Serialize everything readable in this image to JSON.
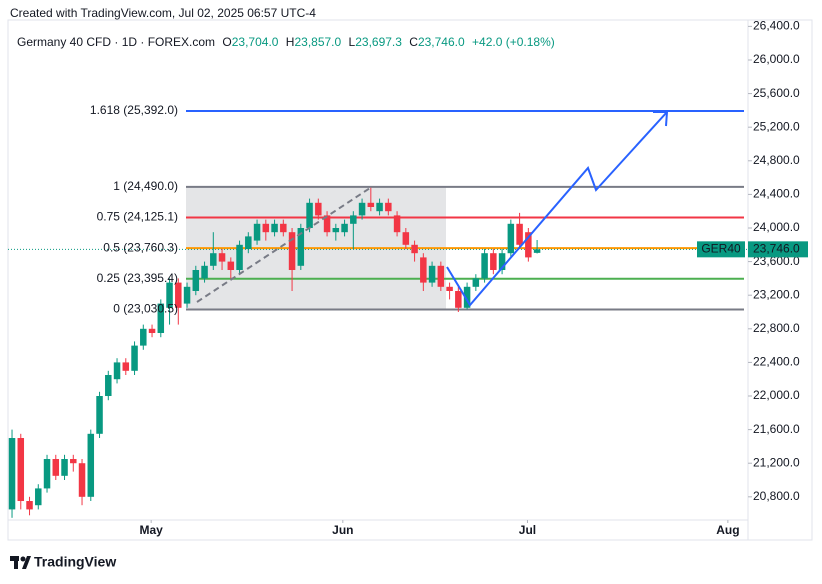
{
  "header": {
    "created": "Created with TradingView.com, Jul 02, 2025 06:57 UTC-4",
    "symbol": "Germany 40 CFD · 1D · FOREX.com",
    "ohlc": [
      {
        "key": "O",
        "value": "23,704.0"
      },
      {
        "key": "H",
        "value": "23,857.0"
      },
      {
        "key": "L",
        "value": "23,697.3"
      },
      {
        "key": "C",
        "value": "23,746.0"
      }
    ],
    "change": "+42.0 (+0.18%)"
  },
  "footer": {
    "brand": "TradingView"
  },
  "chart_data": {
    "type": "candlestick",
    "up_color": "#089981",
    "down_color": "#f23645",
    "open": [
      20650,
      21500,
      20750,
      20700,
      20900,
      21250,
      21050,
      21250,
      21200,
      20800,
      21550,
      22000,
      22200,
      22400,
      22300,
      22600,
      22800,
      22750,
      23050,
      23350,
      23100,
      23250,
      23400,
      23550,
      23700,
      23600,
      23500,
      23750,
      23850,
      24050,
      23950,
      24050,
      23950,
      23550,
      24000,
      24300,
      24150,
      23950,
      23950,
      24050,
      24150,
      24300,
      24200,
      24300,
      24150,
      23950,
      23800,
      23650,
      23350,
      23550,
      23300,
      23250,
      23050,
      23300,
      23400,
      23700,
      23500,
      23700,
      24050,
      23950,
      23704
    ],
    "high": [
      21600,
      21550,
      20800,
      20950,
      21300,
      21300,
      21300,
      21300,
      21250,
      21600,
      22050,
      22300,
      22450,
      22450,
      22650,
      22850,
      22850,
      23150,
      23400,
      23400,
      23350,
      23550,
      23600,
      23950,
      23750,
      23650,
      23850,
      23950,
      24100,
      24100,
      24100,
      24100,
      24000,
      24050,
      24350,
      24350,
      24200,
      24050,
      24100,
      24200,
      24350,
      24480,
      24350,
      24350,
      24200,
      24000,
      23850,
      23700,
      23600,
      23600,
      23350,
      23300,
      23350,
      23450,
      23750,
      23750,
      23750,
      24100,
      24180,
      24000,
      23857
    ],
    "low": [
      20550,
      20650,
      20580,
      20650,
      20850,
      21000,
      21000,
      21100,
      20700,
      20750,
      21500,
      21950,
      22150,
      22250,
      22250,
      22550,
      22700,
      22700,
      22850,
      22850,
      23050,
      23200,
      23350,
      23500,
      23500,
      23400,
      23450,
      23700,
      23800,
      23850,
      23900,
      23900,
      23250,
      23500,
      23950,
      24100,
      23900,
      23850,
      23900,
      23750,
      24100,
      24200,
      24150,
      24150,
      23900,
      23750,
      23600,
      23250,
      23300,
      23250,
      23150,
      23000,
      23030,
      23250,
      23350,
      23450,
      23450,
      23650,
      23750,
      23600,
      23697
    ],
    "close": [
      21500,
      20750,
      20650,
      20900,
      21250,
      21050,
      21250,
      21200,
      20800,
      21550,
      22000,
      22250,
      22400,
      22300,
      22600,
      22800,
      22750,
      23100,
      23350,
      23050,
      23300,
      23500,
      23550,
      23700,
      23600,
      23500,
      23800,
      23900,
      24050,
      23950,
      24050,
      23950,
      23500,
      24000,
      24300,
      24150,
      23950,
      24000,
      24050,
      24150,
      24300,
      24250,
      24300,
      24200,
      23950,
      23800,
      23700,
      23350,
      23550,
      23300,
      23250,
      23050,
      23300,
      23400,
      23700,
      23500,
      23700,
      24050,
      23800,
      23650,
      23746
    ],
    "xlim": [
      -0.46,
      84.1
    ],
    "xticks": [
      {
        "value": 15.9,
        "label": "May"
      },
      {
        "value": 37.8,
        "label": "Jun"
      },
      {
        "value": 58.9,
        "label": "Jul"
      },
      {
        "value": 81.8,
        "label": "Aug"
      }
    ],
    "ylim": [
      20524,
      26476
    ],
    "yticks": [
      {
        "value": 20800,
        "label": "20,800.0"
      },
      {
        "value": 21200,
        "label": "21,200.0"
      },
      {
        "value": 21600,
        "label": "21,600.0"
      },
      {
        "value": 22000,
        "label": "22,000.0"
      },
      {
        "value": 22400,
        "label": "22,400.0"
      },
      {
        "value": 22800,
        "label": "22,800.0"
      },
      {
        "value": 23200,
        "label": "23,200.0"
      },
      {
        "value": 23600,
        "label": "23,600.0"
      },
      {
        "value": 24000,
        "label": "24,000.0"
      },
      {
        "value": 24400,
        "label": "24,400.0"
      },
      {
        "value": 24800,
        "label": "24,800.0"
      },
      {
        "value": 25200,
        "label": "25,200.0"
      },
      {
        "value": 25600,
        "label": "25,600.0"
      },
      {
        "value": 26000,
        "label": "26,000.0"
      },
      {
        "value": 26400,
        "label": "26,400.0"
      }
    ],
    "fib_levels": [
      {
        "label": "1.618 (25,392.0)",
        "value": 25392.0,
        "color": "#2962ff"
      },
      {
        "label": "1 (24,490.0)",
        "value": 24490.0,
        "color": "#787b86"
      },
      {
        "label": "0.75 (24,125.1)",
        "value": 24125.1,
        "color": "#f23645"
      },
      {
        "label": "0.5 (23,760.3)",
        "value": 23760.3,
        "color": "#ff9800"
      },
      {
        "label": "0.25 (23,395.4)",
        "value": 23395.4,
        "color": "#4caf50"
      },
      {
        "label": "0 (23,030.5)",
        "value": 23030.5,
        "color": "#787b86"
      }
    ],
    "last_price": {
      "symbol": "GER40",
      "label": "23,746.0",
      "value": 23746.0,
      "color": "#089981"
    }
  }
}
